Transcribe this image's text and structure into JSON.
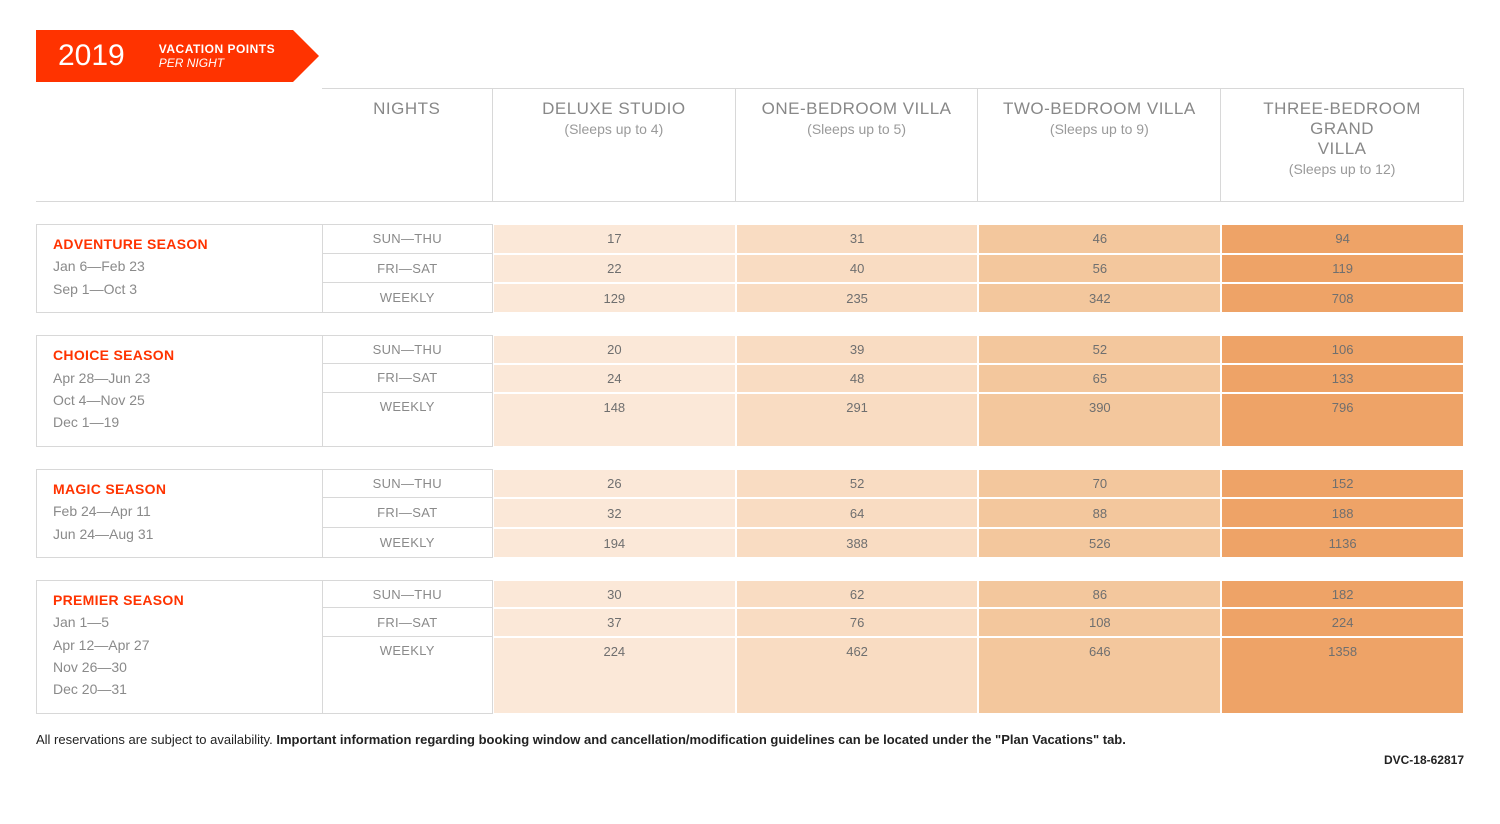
{
  "banner": {
    "year": "2019",
    "line1": "VACATION POINTS",
    "line2": "PER NIGHT"
  },
  "colors": {
    "accent": "#ff3300",
    "header_text": "#888888",
    "header_border": "#d8d8d8",
    "body_text": "#8a8a8a",
    "cell_text": "#6f6f6f",
    "shades": [
      "#fbe8d8",
      "#f9dcc2",
      "#f3c79d",
      "#eea367"
    ]
  },
  "columns": {
    "nights_header": "NIGHTS",
    "rooms": [
      {
        "title": "DELUXE STUDIO",
        "sub": "(Sleeps up to 4)"
      },
      {
        "title": "ONE-BEDROOM VILLA",
        "sub": "(Sleeps up to 5)"
      },
      {
        "title": "TWO-BEDROOM VILLA",
        "sub": "(Sleeps up to 9)"
      },
      {
        "title": "THREE-BEDROOM GRAND VILLA",
        "sub": "(Sleeps up to 12)"
      }
    ]
  },
  "night_labels": [
    "SUN—THU",
    "FRI—SAT",
    "WEEKLY"
  ],
  "seasons": [
    {
      "name": "ADVENTURE SEASON",
      "dates": [
        "Jan 6—Feb 23",
        "Sep 1—Oct 3"
      ],
      "rows": [
        [
          17,
          31,
          46,
          94
        ],
        [
          22,
          40,
          56,
          119
        ],
        [
          129,
          235,
          342,
          708
        ]
      ]
    },
    {
      "name": "CHOICE SEASON",
      "dates": [
        "Apr 28—Jun 23",
        "Oct 4—Nov 25",
        "Dec 1—19"
      ],
      "rows": [
        [
          20,
          39,
          52,
          106
        ],
        [
          24,
          48,
          65,
          133
        ],
        [
          148,
          291,
          390,
          796
        ]
      ]
    },
    {
      "name": "MAGIC SEASON",
      "dates": [
        "Feb 24—Apr 11",
        "Jun 24—Aug 31"
      ],
      "rows": [
        [
          26,
          52,
          70,
          152
        ],
        [
          32,
          64,
          88,
          188
        ],
        [
          194,
          388,
          526,
          1136
        ]
      ]
    },
    {
      "name": "PREMIER SEASON",
      "dates": [
        "Jan 1—5",
        "Apr 12—Apr 27",
        "Nov 26—30",
        "Dec 20—31"
      ],
      "rows": [
        [
          30,
          62,
          86,
          182
        ],
        [
          37,
          76,
          108,
          224
        ],
        [
          224,
          462,
          646,
          1358
        ]
      ]
    }
  ],
  "footer": {
    "plain": "All reservations are subject to availability. ",
    "bold": "Important information regarding booking window and cancellation/modification guidelines can be located under the \"Plan Vacations\" tab.",
    "doc_code": "DVC-18-62817"
  }
}
